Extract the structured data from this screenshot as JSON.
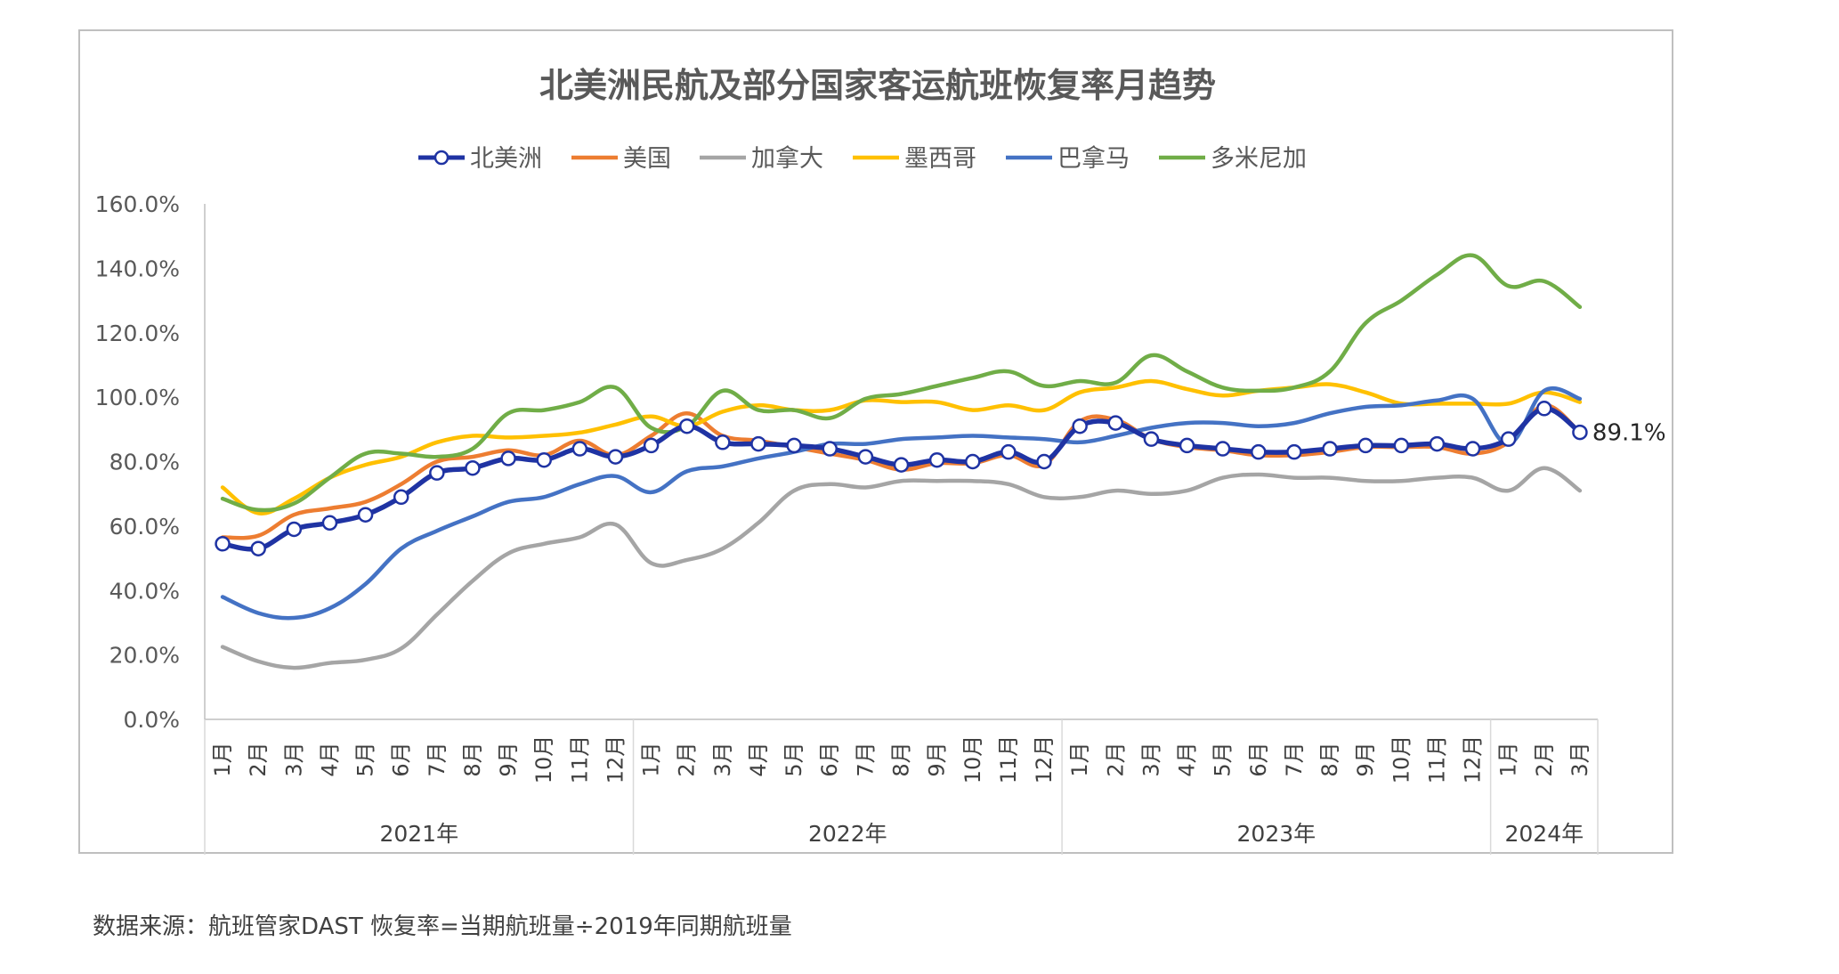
{
  "chart_data": {
    "type": "line",
    "title": "北美洲民航及部分国家客运航班恢复率月趋势",
    "ylim": [
      0,
      160
    ],
    "y_ticks": [
      "0.0%",
      "20.0%",
      "40.0%",
      "60.0%",
      "80.0%",
      "100.0%",
      "120.0%",
      "140.0%",
      "160.0%"
    ],
    "x_labels": [
      "1月",
      "2月",
      "3月",
      "4月",
      "5月",
      "6月",
      "7月",
      "8月",
      "9月",
      "10月",
      "11月",
      "12月",
      "1月",
      "2月",
      "3月",
      "4月",
      "5月",
      "6月",
      "7月",
      "8月",
      "9月",
      "10月",
      "11月",
      "12月",
      "1月",
      "2月",
      "3月",
      "4月",
      "5月",
      "6月",
      "7月",
      "8月",
      "9月",
      "10月",
      "11月",
      "12月",
      "1月",
      "2月",
      "3月"
    ],
    "year_groups": [
      {
        "label": "2021年",
        "months": 12
      },
      {
        "label": "2022年",
        "months": 12
      },
      {
        "label": "2023年",
        "months": 12
      },
      {
        "label": "2024年",
        "months": 3
      }
    ],
    "legend_position": "top",
    "grid": false,
    "series": [
      {
        "name": "北美洲",
        "color": "#1f33a3",
        "markers": true,
        "values": [
          54.5,
          53,
          59,
          61,
          63.5,
          69,
          76.5,
          78,
          81,
          80.5,
          84,
          81.5,
          85,
          91,
          86,
          85.5,
          85,
          84,
          81.5,
          79,
          80.5,
          80,
          83,
          80,
          91,
          92,
          87,
          85,
          84,
          83,
          83,
          84,
          85,
          85,
          85.5,
          84,
          87,
          96.5,
          89.1
        ]
      },
      {
        "name": "美国",
        "color": "#ed7d31",
        "values": [
          56.5,
          57,
          63.5,
          65.5,
          67.5,
          73,
          80,
          81.5,
          83.5,
          82,
          86.5,
          82,
          88,
          95,
          88,
          86.5,
          84.5,
          82.5,
          80.5,
          77.5,
          79.5,
          79.5,
          82,
          79,
          92.5,
          93,
          87,
          84.5,
          83.5,
          82,
          82,
          83,
          84.5,
          84.5,
          84.5,
          82.5,
          86,
          97.5,
          89
        ]
      },
      {
        "name": "加拿大",
        "color": "#a5a5a5",
        "values": [
          22.5,
          18,
          16,
          17.5,
          18.5,
          22,
          32.5,
          43,
          51.5,
          54.5,
          56.5,
          60.5,
          48.5,
          49.5,
          53,
          61,
          71,
          73,
          72,
          74,
          74,
          74,
          73,
          69,
          69,
          71,
          70,
          71,
          75,
          76,
          75,
          75,
          74,
          74,
          75,
          75,
          71,
          78,
          71
        ]
      },
      {
        "name": "墨西哥",
        "color": "#ffc000",
        "values": [
          72,
          64,
          68.5,
          75,
          79,
          81.5,
          86,
          88,
          87.5,
          88,
          89,
          91.5,
          94,
          91,
          95.5,
          97.5,
          96,
          96,
          99,
          98.5,
          98.5,
          96,
          97.5,
          96,
          101.5,
          103,
          105,
          102.5,
          100.5,
          102,
          103,
          104,
          101.5,
          98,
          98,
          98,
          98,
          101.5,
          98.5
        ]
      },
      {
        "name": "巴拿马",
        "color": "#4472c4",
        "values": [
          38,
          33,
          31.5,
          34.5,
          42,
          53,
          58.5,
          63,
          67.5,
          69,
          73,
          75.5,
          70.5,
          77,
          78.5,
          81,
          83,
          85.5,
          85.5,
          87,
          87.5,
          88,
          87.5,
          87,
          86,
          88,
          90.5,
          92,
          92,
          91,
          92,
          95,
          97,
          97.5,
          99,
          99.5,
          85.5,
          102,
          99.5
        ]
      },
      {
        "name": "多米尼加",
        "color": "#70ad47",
        "values": [
          68.5,
          65,
          67,
          75,
          82.5,
          82.5,
          81.5,
          84,
          95,
          96,
          98.5,
          103,
          90.5,
          91,
          102,
          96,
          96,
          93.5,
          99.5,
          101,
          103.5,
          106,
          108,
          103.5,
          105,
          104.5,
          113,
          108,
          103,
          102,
          103,
          108,
          123,
          130,
          138,
          144,
          134.5,
          136,
          128
        ]
      }
    ],
    "data_labels": [
      {
        "series": "北美洲",
        "index": 38,
        "text": "89.1%"
      }
    ]
  },
  "footer": {
    "source": "数据来源：航班管家DAST 恢复率=当期航班量÷2019年同期航班量"
  }
}
